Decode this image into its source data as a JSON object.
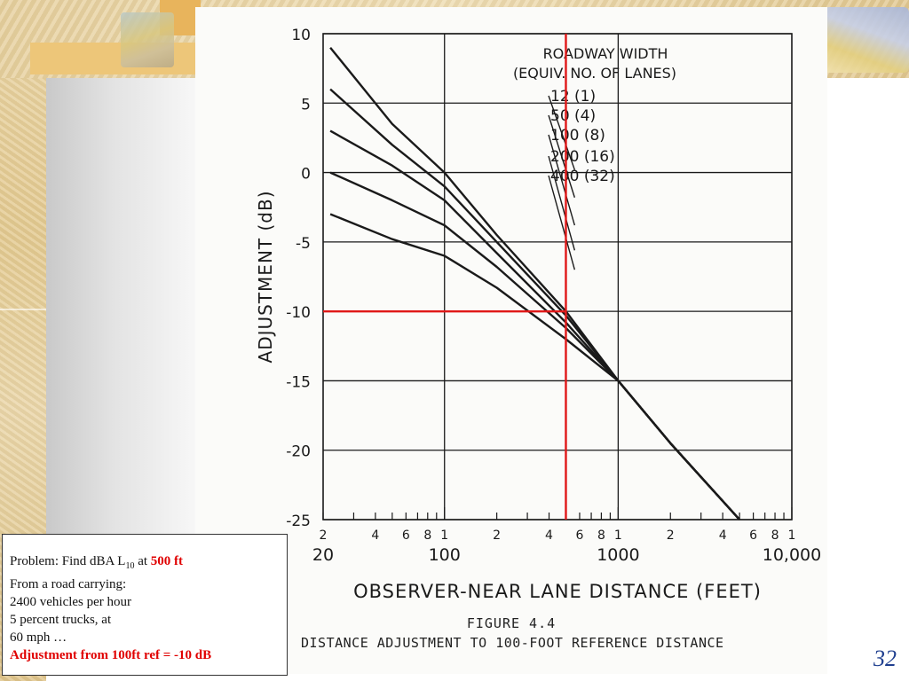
{
  "slide": {
    "page_number": "32"
  },
  "problem": {
    "line1_prefix": "Problem: Find dBA L",
    "line1_sub": "10",
    "line1_mid": " at ",
    "line1_highlight": "500 ft",
    "line2": "From a road carrying:",
    "line3": "2400 vehicles per hour",
    "line4": "5 percent trucks, at",
    "line5": "60 mph …",
    "answer": "Adjustment from 100ft ref = -10 dB"
  },
  "figure": {
    "caption_title": "FIGURE 4.4",
    "caption_sub": "DISTANCE ADJUSTMENT TO 100-FOOT REFERENCE DISTANCE"
  },
  "chart_data": {
    "type": "line",
    "xscale": "log",
    "xlabel": "OBSERVER-NEAR LANE DISTANCE (FEET)",
    "ylabel": "ADJUSTMENT (dB)",
    "xlim": [
      20,
      10000
    ],
    "ylim": [
      -25,
      10
    ],
    "y_ticks": [
      10,
      5,
      0,
      -5,
      -10,
      -15,
      -20,
      -25
    ],
    "x_major_labels": [
      {
        "value": 20,
        "label": "20"
      },
      {
        "value": 100,
        "label": "100"
      },
      {
        "value": 1000,
        "label": "1000"
      },
      {
        "value": 10000,
        "label": "10,000"
      }
    ],
    "x_minor_labels": [
      {
        "value": 20,
        "label": "2"
      },
      {
        "value": 40,
        "label": "4"
      },
      {
        "value": 60,
        "label": "6"
      },
      {
        "value": 80,
        "label": "8"
      },
      {
        "value": 100,
        "label": "1"
      },
      {
        "value": 200,
        "label": "2"
      },
      {
        "value": 400,
        "label": "4"
      },
      {
        "value": 600,
        "label": "6"
      },
      {
        "value": 800,
        "label": "8"
      },
      {
        "value": 1000,
        "label": "1"
      },
      {
        "value": 2000,
        "label": "2"
      },
      {
        "value": 4000,
        "label": "4"
      },
      {
        "value": 6000,
        "label": "6"
      },
      {
        "value": 8000,
        "label": "8"
      },
      {
        "value": 10000,
        "label": "1"
      }
    ],
    "legend_title": [
      "ROADWAY WIDTH",
      "(EQUIV. NO. OF LANES)"
    ],
    "series": [
      {
        "name": "12 (1)",
        "points": [
          [
            22,
            9
          ],
          [
            50,
            3.5
          ],
          [
            100,
            0
          ],
          [
            200,
            -4.5
          ],
          [
            500,
            -10
          ],
          [
            1000,
            -15
          ],
          [
            2000,
            -19.5
          ],
          [
            5000,
            -25
          ]
        ]
      },
      {
        "name": "50 (4)",
        "points": [
          [
            22,
            6
          ],
          [
            50,
            2
          ],
          [
            100,
            -1
          ],
          [
            200,
            -5
          ],
          [
            500,
            -10.3
          ],
          [
            1000,
            -15
          ],
          [
            2000,
            -19.5
          ],
          [
            5000,
            -25
          ]
        ]
      },
      {
        "name": "100 (8)",
        "points": [
          [
            22,
            3
          ],
          [
            50,
            0.5
          ],
          [
            100,
            -2
          ],
          [
            200,
            -5.8
          ],
          [
            500,
            -10.8
          ],
          [
            1000,
            -15
          ],
          [
            2000,
            -19.5
          ],
          [
            5000,
            -25
          ]
        ]
      },
      {
        "name": "200 (16)",
        "points": [
          [
            22,
            0
          ],
          [
            50,
            -2
          ],
          [
            100,
            -3.8
          ],
          [
            200,
            -6.8
          ],
          [
            500,
            -11.2
          ],
          [
            1000,
            -15
          ],
          [
            2000,
            -19.5
          ],
          [
            5000,
            -25
          ]
        ]
      },
      {
        "name": "400 (32)",
        "points": [
          [
            22,
            -3
          ],
          [
            50,
            -4.8
          ],
          [
            100,
            -6
          ],
          [
            200,
            -8.3
          ],
          [
            500,
            -12
          ],
          [
            1000,
            -15
          ],
          [
            2000,
            -19.5
          ],
          [
            5000,
            -25
          ]
        ]
      }
    ],
    "annotations": [
      {
        "type": "vertical",
        "x": 500,
        "color": "#e01818"
      },
      {
        "type": "horizontal",
        "y": -10,
        "color": "#e01818"
      }
    ]
  }
}
